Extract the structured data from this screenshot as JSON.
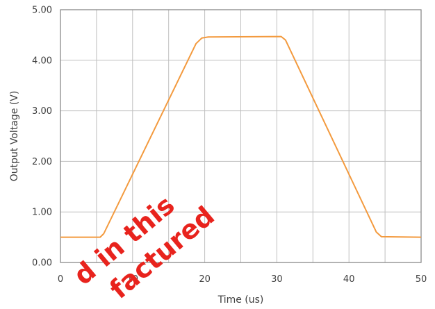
{
  "chart_data": {
    "type": "line",
    "title": "",
    "xlabel": "Time (us)",
    "ylabel": "Output Voltage (V)",
    "xlim": [
      0,
      50
    ],
    "ylim": [
      0,
      5
    ],
    "x_ticks": [
      "0",
      "10",
      "20",
      "30",
      "40",
      "50"
    ],
    "y_ticks": [
      "0.00",
      "1.00",
      "2.00",
      "3.00",
      "4.00",
      "5.00"
    ],
    "x_tick_values": [
      0,
      10,
      20,
      30,
      40,
      50
    ],
    "y_tick_values": [
      0,
      1,
      2,
      3,
      4,
      5
    ],
    "x_minor_grid": [
      5,
      15,
      25,
      35,
      45
    ],
    "grid": true,
    "legend": "none",
    "series": [
      {
        "color": "#f39a3e",
        "x": [
          0,
          5.5,
          6.0,
          18.8,
          19.6,
          20.5,
          30.6,
          31.2,
          43.8,
          44.5,
          50
        ],
        "y": [
          0.5,
          0.5,
          0.57,
          4.33,
          4.44,
          4.46,
          4.47,
          4.4,
          0.6,
          0.51,
          0.5
        ]
      }
    ]
  },
  "watermark": {
    "line1": "d in this",
    "line2": "factured"
  }
}
